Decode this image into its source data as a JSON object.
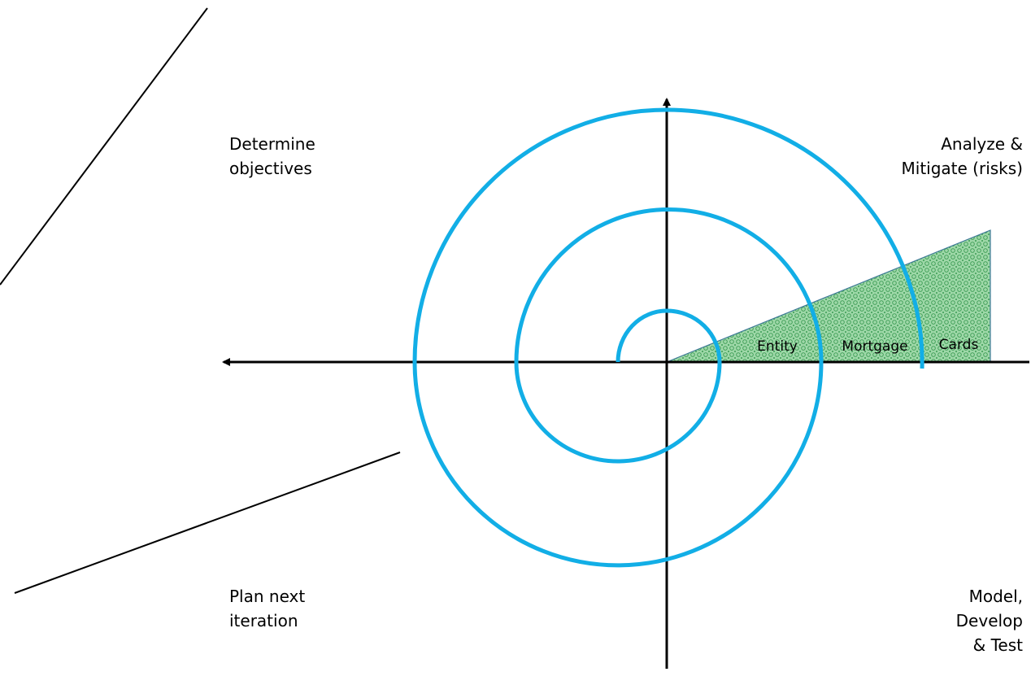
{
  "quadrants": {
    "top_left": [
      "Determine",
      "objectives"
    ],
    "top_right": [
      "Analyze &",
      "Mitigate (risks)"
    ],
    "bottom_left": [
      "Plan next",
      "iteration"
    ],
    "bottom_right": [
      "Model,",
      "Develop",
      "& Test"
    ]
  },
  "wedge": {
    "segments": [
      "Entity",
      "Mortgage",
      "Cards"
    ],
    "fill_color": "#9ed8a8",
    "pattern_color": "#3a9a52"
  },
  "colors": {
    "spiral": "#12aee6",
    "axes": "#000000"
  }
}
